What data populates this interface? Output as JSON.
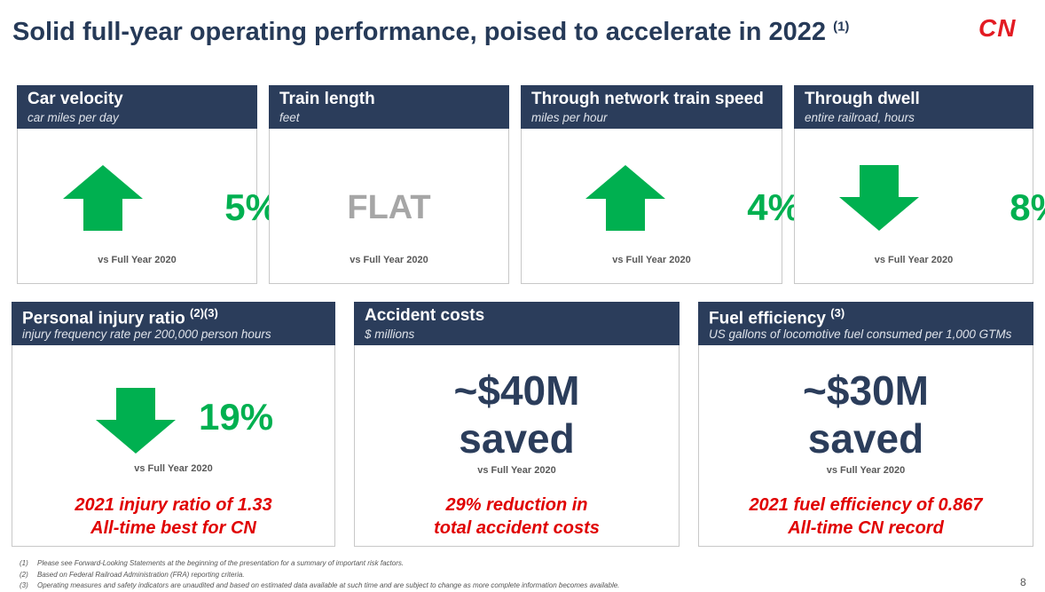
{
  "header": {
    "title": "Solid full-year operating performance, poised to accelerate in 2022",
    "title_note": "(1)",
    "logo": "CN"
  },
  "top_cards": [
    {
      "title": "Car velocity",
      "subtitle": "car miles per day",
      "value": "5%",
      "comparison": "vs Full Year 2020"
    },
    {
      "title": "Train length",
      "subtitle": "feet",
      "value": "FLAT",
      "comparison": "vs Full Year 2020"
    },
    {
      "title": "Through network train speed",
      "subtitle": "miles per hour",
      "value": "4%",
      "comparison": "vs Full Year 2020"
    },
    {
      "title": "Through dwell",
      "subtitle": "entire railroad, hours",
      "value": "8%",
      "comparison": "vs Full Year 2020"
    }
  ],
  "bottom_cards": [
    {
      "title": "Personal injury ratio",
      "title_note": "(2)(3)",
      "subtitle": "injury frequency rate per 200,000 person hours",
      "value": [
        "19%"
      ],
      "comparison": "vs Full Year 2020",
      "highlight": [
        "2021 injury ratio of 1.33",
        "All-time best for CN"
      ]
    },
    {
      "title": "Accident costs",
      "title_note": null,
      "subtitle": "$ millions",
      "value": [
        "~$40M",
        "saved"
      ],
      "comparison": "vs Full Year 2020",
      "highlight": [
        "29% reduction in",
        "total accident costs"
      ]
    },
    {
      "title": "Fuel efficiency",
      "title_note": "(3)",
      "subtitle": "US gallons of locomotive fuel consumed per 1,000 GTMs",
      "value": [
        "~$30M",
        "saved"
      ],
      "comparison": "vs Full Year 2020",
      "highlight": [
        "2021 fuel efficiency of 0.867",
        "All-time CN record"
      ]
    }
  ],
  "footnotes": [
    {
      "marker": "(1)",
      "text": "Please see Forward-Looking Statements at the beginning of the presentation for a summary of important risk factors."
    },
    {
      "marker": "(2)",
      "text": "Based on Federal Railroad Administration (FRA) reporting criteria."
    },
    {
      "marker": "(3)",
      "text": "Operating measures and safety indicators are unaudited and based on estimated data available at such time and are subject to change as more complete information becomes available."
    }
  ],
  "page_number": "8"
}
